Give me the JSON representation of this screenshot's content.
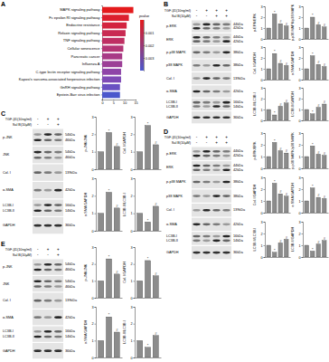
{
  "chart_data": [
    {
      "type": "bar",
      "orientation": "horizontal",
      "categories": [
        "MAPK signaling pathway",
        "Fc epsilon RI signaling pathway",
        "Endocrine resistance",
        "Relaxin signaling pathway",
        "TNF signaling pathway",
        "Cellular senescence",
        "Pancreatic cancer",
        "Influenza A",
        "C-type lectin receptor signaling pathway",
        "Kaposi's sarcoma-associated herpesvirus infection",
        "GnRH signaling pathway",
        "Epstein-Barr virus infection"
      ],
      "values": [
        14,
        12,
        11,
        10.5,
        10,
        9.5,
        9,
        9,
        8.5,
        8.5,
        8,
        8
      ],
      "colors": [
        "#e41a1c",
        "#dc1f2e",
        "#d3243f",
        "#c92a52",
        "#bf2f63",
        "#b43575",
        "#a83a86",
        "#9c3f97",
        "#8f45a8",
        "#7f4bb6",
        "#6a51c2",
        "#4b57cc"
      ],
      "xlim": [
        0,
        15
      ],
      "xticks": [
        0,
        5,
        10,
        15
      ],
      "colorbar_title": "pvalue",
      "colorbar_range": [
        0,
        0.004
      ],
      "colorbar_ticks": [
        0.001,
        0.002,
        0.003
      ]
    },
    {
      "type": "bar",
      "y_label": "p-ERK/ERK",
      "categories": [
        null,
        null,
        null,
        null
      ],
      "values": [
        1,
        2.3,
        1.4,
        1.2
      ],
      "annotations": [
        null,
        "*",
        "#",
        "#"
      ],
      "color": "#8c8c8c",
      "ylim": [
        0,
        3
      ],
      "yticks": [
        0,
        1,
        2,
        3
      ],
      "tick_labels": "y"
    },
    {
      "type": "bar",
      "y_label": "p-p38 MAPK/p38 MAPK",
      "categories": [
        null,
        null,
        null,
        null
      ],
      "values": [
        1,
        2,
        1.3,
        1.1
      ],
      "annotations": [
        null,
        "*",
        "#",
        "#"
      ],
      "color": "#8c8c8c",
      "ylim": [
        0,
        3
      ],
      "yticks": [
        0,
        1,
        2,
        3
      ],
      "tick_labels": "y"
    },
    {
      "type": "bar",
      "y_label": "Col. I/GAPDH",
      "categories": [
        null,
        null,
        null,
        null
      ],
      "values": [
        1,
        2.4,
        1.5,
        1.3
      ],
      "annotations": [
        null,
        "*",
        "#",
        "#"
      ],
      "color": "#8c8c8c",
      "ylim": [
        0,
        3
      ],
      "yticks": [
        0,
        1,
        2,
        3
      ],
      "tick_labels": "y"
    },
    {
      "type": "bar",
      "y_label": "α-SMA/GAPDH",
      "categories": [
        null,
        null,
        null,
        null
      ],
      "values": [
        1,
        2.2,
        1.4,
        1.2
      ],
      "annotations": [
        null,
        "*",
        "#",
        "#"
      ],
      "color": "#8c8c8c",
      "ylim": [
        0,
        3
      ],
      "yticks": [
        0,
        1,
        2,
        3
      ],
      "tick_labels": "y"
    },
    {
      "type": "bar",
      "y_label": "LC3B-II/LC3B-I",
      "categories": [
        null,
        null,
        null,
        null
      ],
      "values": [
        1,
        0.5,
        1.3,
        1.6
      ],
      "annotations": [
        null,
        "*",
        "#",
        "#"
      ],
      "color": "#8c8c8c",
      "ylim": [
        0,
        3
      ],
      "yticks": [
        0,
        1,
        2,
        3
      ],
      "tick_labels": "y"
    },
    {
      "type": "bar",
      "y_label": "LC3B-II/GAPDH",
      "categories": [
        null,
        null,
        null,
        null
      ],
      "values": [
        1,
        0.6,
        1.2,
        1.5
      ],
      "annotations": [
        null,
        "*",
        "#",
        "#"
      ],
      "color": "#8c8c8c",
      "ylim": [
        0,
        3
      ],
      "yticks": [
        0,
        1,
        2,
        3
      ],
      "tick_labels": "y"
    },
    {
      "type": "bar",
      "y_label": "p-JNK/JNK",
      "categories": [
        null,
        null,
        null
      ],
      "values": [
        1,
        2.1,
        1.3
      ],
      "annotations": [
        null,
        "*",
        "#"
      ],
      "color": "#8c8c8c",
      "ylim": [
        0,
        3
      ],
      "yticks": [
        0,
        1,
        2,
        3
      ],
      "tick_labels": "y"
    },
    {
      "type": "bar",
      "y_label": "Col. I/GAPDH",
      "categories": [
        null,
        null,
        null
      ],
      "values": [
        1,
        2.5,
        1.4
      ],
      "annotations": [
        null,
        "*",
        "#"
      ],
      "color": "#8c8c8c",
      "ylim": [
        0,
        3
      ],
      "yticks": [
        0,
        1,
        2,
        3
      ],
      "tick_labels": "y"
    },
    {
      "type": "bar",
      "y_label": "α-SMA/GAPDH",
      "categories": [
        null,
        null,
        null
      ],
      "values": [
        1,
        2.2,
        1.3
      ],
      "annotations": [
        null,
        "*",
        "#"
      ],
      "color": "#8c8c8c",
      "ylim": [
        0,
        3
      ],
      "yticks": [
        0,
        1,
        2,
        3
      ],
      "tick_labels": "y"
    },
    {
      "type": "bar",
      "y_label": "LC3B-II/LC3B-I",
      "categories": [
        null,
        null,
        null
      ],
      "values": [
        1,
        0.5,
        1.4
      ],
      "annotations": [
        null,
        "*",
        "#"
      ],
      "color": "#8c8c8c",
      "ylim": [
        0,
        3
      ],
      "yticks": [
        0,
        1,
        2,
        3
      ],
      "tick_labels": "y"
    },
    {
      "type": "bar",
      "y_label": "p-ERK/ERK",
      "categories": [
        null,
        null,
        null,
        null
      ],
      "values": [
        1,
        2.2,
        1.5,
        1.3
      ],
      "annotations": [
        null,
        "*",
        "#",
        "#"
      ],
      "color": "#8c8c8c",
      "ylim": [
        0,
        3
      ],
      "yticks": [
        0,
        1,
        2,
        3
      ],
      "tick_labels": "y"
    },
    {
      "type": "bar",
      "y_label": "p-p38 MAPK/p38 MAPK",
      "categories": [
        null,
        null,
        null,
        null
      ],
      "values": [
        1,
        1.9,
        1.2,
        1.1
      ],
      "annotations": [
        null,
        "*",
        "#",
        "#"
      ],
      "color": "#8c8c8c",
      "ylim": [
        0,
        3
      ],
      "yticks": [
        0,
        1,
        2,
        3
      ],
      "tick_labels": "y"
    },
    {
      "type": "bar",
      "y_label": "Col. I/GAPDH",
      "categories": [
        null,
        null,
        null,
        null
      ],
      "values": [
        1,
        2.5,
        1.6,
        1.4
      ],
      "annotations": [
        null,
        "*",
        "#",
        "#"
      ],
      "color": "#8c8c8c",
      "ylim": [
        0,
        3
      ],
      "yticks": [
        0,
        1,
        2,
        3
      ],
      "tick_labels": "y"
    },
    {
      "type": "bar",
      "y_label": "α-SMA/GAPDH",
      "categories": [
        null,
        null,
        null,
        null
      ],
      "values": [
        1,
        2.1,
        1.3,
        1.2
      ],
      "annotations": [
        null,
        "*",
        "#",
        "#"
      ],
      "color": "#8c8c8c",
      "ylim": [
        0,
        3
      ],
      "yticks": [
        0,
        1,
        2,
        3
      ],
      "tick_labels": "y"
    },
    {
      "type": "bar",
      "y_label": "LC3B-II/LC3B-I",
      "categories": [
        null,
        null,
        null,
        null
      ],
      "values": [
        1,
        0.4,
        1.2,
        1.5
      ],
      "annotations": [
        null,
        "*",
        "#",
        "#"
      ],
      "color": "#8c8c8c",
      "ylim": [
        0,
        3
      ],
      "yticks": [
        0,
        1,
        2,
        3
      ],
      "tick_labels": "y"
    },
    {
      "type": "bar",
      "y_label": "LC3B-II/GAPDH",
      "categories": [
        null,
        null,
        null,
        null
      ],
      "values": [
        1,
        0.5,
        1.1,
        1.4
      ],
      "annotations": [
        null,
        "*",
        "#",
        "#"
      ],
      "color": "#8c8c8c",
      "ylim": [
        0,
        3
      ],
      "yticks": [
        0,
        1,
        2,
        3
      ],
      "tick_labels": "y"
    },
    {
      "type": "bar",
      "y_label": "p-JNK/JNK",
      "categories": [
        null,
        null,
        null
      ],
      "values": [
        1,
        2.3,
        1.4
      ],
      "annotations": [
        null,
        "*",
        "#"
      ],
      "color": "#8c8c8c",
      "ylim": [
        0,
        3
      ],
      "yticks": [
        0,
        1,
        2,
        3
      ],
      "tick_labels": "y"
    },
    {
      "type": "bar",
      "y_label": "Col. I/GAPDH",
      "categories": [
        null,
        null,
        null
      ],
      "values": [
        1,
        2.2,
        1.3
      ],
      "annotations": [
        null,
        "*",
        "#"
      ],
      "color": "#8c8c8c",
      "ylim": [
        0,
        3
      ],
      "yticks": [
        0,
        1,
        2,
        3
      ],
      "tick_labels": "y"
    },
    {
      "type": "bar",
      "y_label": "α-SMA/GAPDH",
      "categories": [
        null,
        null,
        null
      ],
      "values": [
        1,
        2.4,
        1.5
      ],
      "annotations": [
        null,
        "*",
        "#"
      ],
      "color": "#8c8c8c",
      "ylim": [
        0,
        3
      ],
      "yticks": [
        0,
        1,
        2,
        3
      ],
      "tick_labels": "y"
    },
    {
      "type": "bar",
      "y_label": "LC3B-II/LC3B-I",
      "categories": [
        null,
        null,
        null
      ],
      "values": [
        1,
        0.6,
        1.3
      ],
      "annotations": [
        null,
        "*",
        "#"
      ],
      "color": "#8c8c8c",
      "ylim": [
        0,
        3
      ],
      "yticks": [
        0,
        1,
        2,
        3
      ],
      "tick_labels": "y"
    }
  ],
  "panels": [
    {
      "label": "A"
    },
    {
      "label": "B",
      "treatments": [
        {
          "name": "TGF-β1(10ng/ml)",
          "lanes": [
            "-",
            "+",
            "+",
            "+"
          ]
        },
        {
          "name": "Sal B(10μM)",
          "lanes": [
            "-",
            "-",
            "+",
            "+"
          ]
        }
      ],
      "blot": [
        {
          "names": [
            "p-ERK"
          ],
          "kda": [
            "44kDa",
            "42kDa"
          ]
        },
        {
          "names": [
            "ERK"
          ],
          "kda": [
            "44kDa",
            "42kDa"
          ]
        },
        {
          "names": [
            "p-p38 MAPK"
          ],
          "kda": [
            "38kDa"
          ]
        },
        {
          "names": [
            "p38 MAPK"
          ],
          "kda": [
            "38kDa"
          ]
        },
        {
          "names": [
            "Col. I"
          ],
          "kda": [
            "139kDa"
          ]
        },
        {
          "names": [
            "α-SMA"
          ],
          "kda": [
            "42kDa"
          ]
        },
        {
          "names": [
            "LC3B-I",
            "LC3B-II"
          ],
          "kda": [
            "16kDa",
            "14kDa"
          ]
        },
        {
          "names": [
            "GAPDH"
          ],
          "kda": [
            "36kDa"
          ]
        }
      ]
    },
    {
      "label": "C",
      "treatments": [
        {
          "name": "TGF-β1(10ng/ml)",
          "lanes": [
            "-",
            "+",
            "+"
          ]
        },
        {
          "name": "Sal B(10μM)",
          "lanes": [
            "-",
            "-",
            "+"
          ]
        }
      ],
      "blot": [
        {
          "names": [
            "p-JNK"
          ],
          "kda": [
            "54kDa",
            "46kDa"
          ]
        },
        {
          "names": [
            "JNK"
          ],
          "kda": [
            "54kDa",
            "46kDa"
          ]
        },
        {
          "names": [
            "Col. I"
          ],
          "kda": [
            "139kDa"
          ]
        },
        {
          "names": [
            "α-SMA"
          ],
          "kda": [
            "42kDa"
          ]
        },
        {
          "names": [
            "LC3B-I",
            "LC3B-II"
          ],
          "kda": [
            "16kDa",
            "14kDa"
          ]
        },
        {
          "names": [
            "GAPDH"
          ],
          "kda": [
            "36kDa"
          ]
        }
      ]
    },
    {
      "label": "D",
      "treatments": [
        {
          "name": "TGF-β1(10ng/ml)",
          "lanes": [
            "-",
            "+",
            "+",
            "+"
          ]
        },
        {
          "name": "Sal B(10μM)",
          "lanes": [
            "-",
            "-",
            "+",
            "+"
          ]
        }
      ],
      "blot": [
        {
          "names": [
            "p-ERK"
          ],
          "kda": [
            "44kDa",
            "42kDa"
          ]
        },
        {
          "names": [
            "ERK"
          ],
          "kda": [
            "44kDa",
            "42kDa"
          ]
        },
        {
          "names": [
            "p-p38 MAPK"
          ],
          "kda": [
            "38kDa"
          ]
        },
        {
          "names": [
            "p38 MAPK"
          ],
          "kda": [
            "38kDa"
          ]
        },
        {
          "names": [
            "Col. I"
          ],
          "kda": [
            "139kDa"
          ]
        },
        {
          "names": [
            "α-SMA"
          ],
          "kda": [
            "42kDa"
          ]
        },
        {
          "names": [
            "LC3B-I",
            "LC3B-II"
          ],
          "kda": [
            "16kDa",
            "14kDa"
          ]
        },
        {
          "names": [
            "GAPDH"
          ],
          "kda": [
            "36kDa"
          ]
        }
      ]
    },
    {
      "label": "E",
      "treatments": [
        {
          "name": "TGF-β1(10ng/ml)",
          "lanes": [
            "-",
            "+",
            "+"
          ]
        },
        {
          "name": "Sal B(10μM)",
          "lanes": [
            "-",
            "-",
            "+"
          ]
        }
      ],
      "blot": [
        {
          "names": [
            "p-JNK"
          ],
          "kda": [
            "54kDa",
            "46kDa"
          ]
        },
        {
          "names": [
            "JNK"
          ],
          "kda": [
            "54kDa",
            "46kDa"
          ]
        },
        {
          "names": [
            "Col. I"
          ],
          "kda": [
            "139kDa"
          ]
        },
        {
          "names": [
            "α-SMA"
          ],
          "kda": [
            "42kDa"
          ]
        },
        {
          "names": [
            "LC3B-I",
            "LC3B-II"
          ],
          "kda": [
            "16kDa",
            "14kDa"
          ]
        },
        {
          "names": [
            "GAPDH"
          ],
          "kda": [
            "36kDa"
          ]
        }
      ]
    }
  ]
}
